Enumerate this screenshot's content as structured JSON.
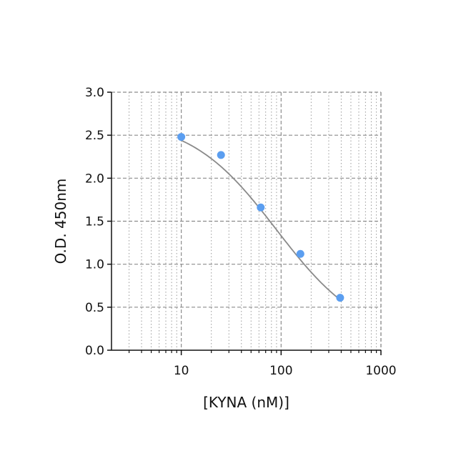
{
  "chart_data": {
    "type": "scatter",
    "xlabel": "[KYNA (nM)]",
    "ylabel": "O.D. 450nm",
    "x_scale": "log",
    "xlim": [
      2,
      1000
    ],
    "ylim": [
      0,
      3.0
    ],
    "x_major_ticks": [
      10,
      100,
      1000
    ],
    "x_tick_labels": [
      "10",
      "100",
      "1000"
    ],
    "x_minor_ticks": [
      3,
      4,
      5,
      6,
      7,
      8,
      9,
      20,
      30,
      40,
      50,
      60,
      70,
      80,
      90,
      200,
      300,
      400,
      500,
      600,
      700,
      800,
      900
    ],
    "y_ticks": [
      0,
      0.5,
      1.0,
      1.5,
      2.0,
      2.5,
      3.0
    ],
    "y_tick_labels": [
      "0.0",
      "0.5",
      "1.0",
      "1.5",
      "2.0",
      "2.5",
      "3.0"
    ],
    "grid": true,
    "legend": "none",
    "series": [
      {
        "points": [
          {
            "x": 10,
            "y": 2.48
          },
          {
            "x": 25,
            "y": 2.27
          },
          {
            "x": 62.5,
            "y": 1.66
          },
          {
            "x": 156,
            "y": 1.12
          },
          {
            "x": 390,
            "y": 0.61
          }
        ],
        "color": "#5b9ef0"
      }
    ],
    "fit_curve": {
      "type": "4PL",
      "x_range": [
        10,
        390
      ],
      "color": "#8a8a8a",
      "params": {
        "top": 2.7,
        "bottom": 0.1,
        "ec50": 90,
        "hill": 1.0
      }
    }
  }
}
